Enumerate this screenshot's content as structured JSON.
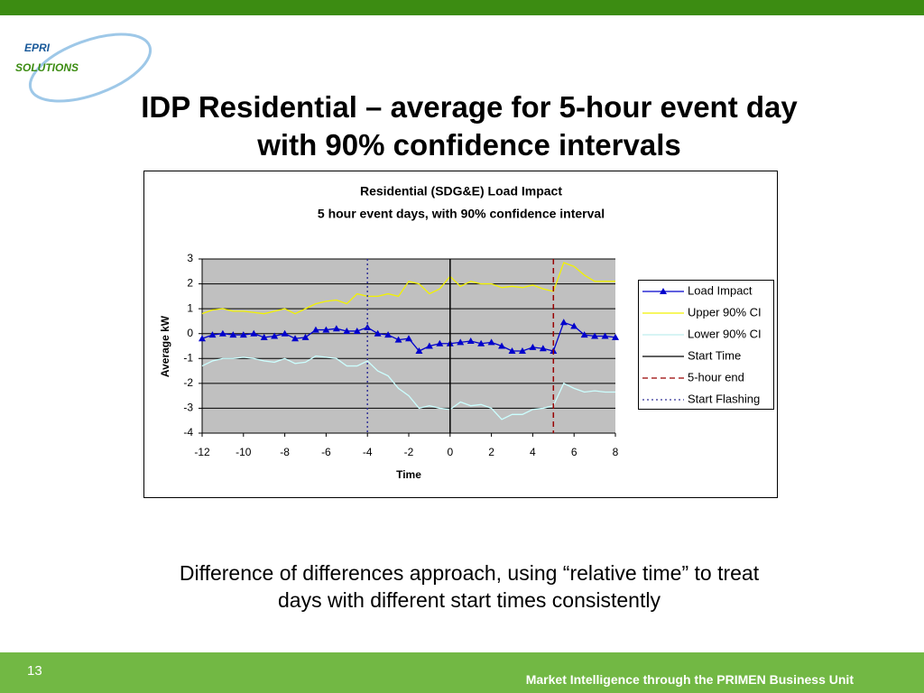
{
  "slide": {
    "logo_top": "EPRI",
    "logo_bottom": "SOLUTIONS",
    "title": [
      "IDP Residential – average for 5-hour event day",
      "with 90% confidence intervals"
    ],
    "caption": [
      "Difference of differences approach, using “relative time” to treat",
      "days with different start times consistently"
    ],
    "page_number": "13",
    "footer": "Market Intelligence through the PRIMEN Business Unit"
  },
  "chart_data": {
    "type": "line",
    "title": "Residential (SDG&E) Load Impact",
    "subtitle": "5 hour event days, with 90% confidence interval",
    "x_label": "Time",
    "y_label": "Average kW",
    "xlim": [
      -12,
      8
    ],
    "xticks": [
      -12,
      -10,
      -8,
      -6,
      -4,
      -2,
      0,
      2,
      4,
      6,
      8
    ],
    "ylim": [
      -4,
      3
    ],
    "yticks": [
      -4,
      -3,
      -2,
      -1,
      0,
      1,
      2,
      3
    ],
    "grid": true,
    "legend": "right",
    "x": [
      -12,
      -11.5,
      -11,
      -10.5,
      -10,
      -9.5,
      -9,
      -8.5,
      -8,
      -7.5,
      -7,
      -6.5,
      -6,
      -5.5,
      -5,
      -4.5,
      -4,
      -3.5,
      -3,
      -2.5,
      -2,
      -1.5,
      -1,
      -0.5,
      0,
      0.5,
      1,
      1.5,
      2,
      2.5,
      3,
      3.5,
      4,
      4.5,
      5,
      5.5,
      6,
      6.5,
      7,
      7.5,
      8
    ],
    "series": [
      {
        "name": "Load Impact",
        "color": "#0000cc",
        "marker": "triangle",
        "values": [
          -0.2,
          -0.05,
          0,
          -0.05,
          -0.05,
          0,
          -0.15,
          -0.1,
          0,
          -0.2,
          -0.15,
          0.15,
          0.15,
          0.2,
          0.1,
          0.1,
          0.25,
          0,
          -0.05,
          -0.25,
          -0.2,
          -0.7,
          -0.5,
          -0.4,
          -0.4,
          -0.35,
          -0.3,
          -0.4,
          -0.35,
          -0.5,
          -0.7,
          -0.7,
          -0.55,
          -0.6,
          -0.7,
          0.45,
          0.3,
          -0.05,
          -0.1,
          -0.1,
          -0.15
        ]
      },
      {
        "name": "Upper 90% CI",
        "color": "#f2f200",
        "values": [
          0.8,
          0.95,
          1.0,
          0.9,
          0.9,
          0.85,
          0.8,
          0.9,
          1.0,
          0.8,
          1.0,
          1.2,
          1.3,
          1.35,
          1.2,
          1.6,
          1.5,
          1.5,
          1.6,
          1.5,
          2.1,
          2.0,
          1.6,
          1.8,
          2.3,
          1.9,
          2.1,
          2.0,
          2.0,
          1.85,
          1.9,
          1.85,
          1.95,
          1.8,
          1.7,
          2.85,
          2.7,
          2.35,
          2.1,
          2.1,
          2.1
        ]
      },
      {
        "name": "Lower 90% CI",
        "color": "#ccffff",
        "values": [
          -1.3,
          -1.1,
          -1.0,
          -1.0,
          -0.95,
          -1.0,
          -1.1,
          -1.15,
          -1.0,
          -1.2,
          -1.15,
          -0.9,
          -0.95,
          -1.0,
          -1.3,
          -1.3,
          -1.1,
          -1.5,
          -1.7,
          -2.2,
          -2.5,
          -3.0,
          -2.9,
          -3.0,
          -3.05,
          -2.75,
          -2.9,
          -2.85,
          -3.0,
          -3.45,
          -3.25,
          -3.25,
          -3.05,
          -3.0,
          -2.9,
          -2.0,
          -2.2,
          -2.35,
          -2.3,
          -2.35,
          -2.35
        ]
      },
      {
        "name": "Start Time",
        "color": "#000000",
        "at_x": 0,
        "dash": "none"
      },
      {
        "name": "5-hour end",
        "color": "#990000",
        "at_x": 5,
        "dash": "6,4"
      },
      {
        "name": "Start Flashing",
        "color": "#333399",
        "at_x": -4,
        "dash": "2,3"
      }
    ]
  }
}
